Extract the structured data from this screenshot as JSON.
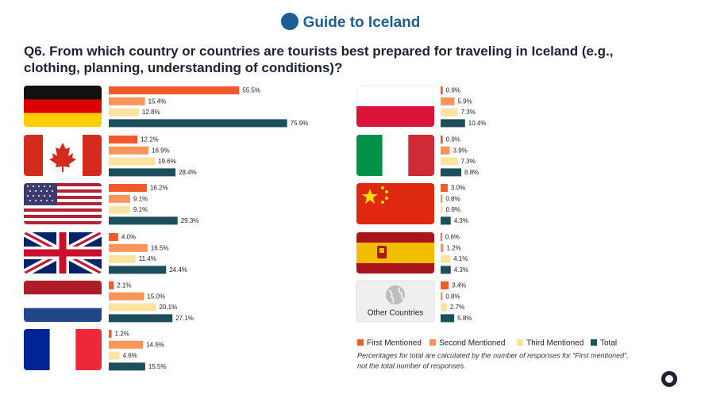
{
  "chart_data": {
    "type": "bar",
    "orientation": "horizontal",
    "brand": "Guide to Iceland",
    "title": "Q6. From which country or countries are tourists best prepared for traveling in Iceland (e.g., clothing, planning, understanding of conditions)?",
    "categories": [
      null,
      null,
      null,
      null,
      null,
      null,
      null,
      null,
      null,
      null,
      "Other Countries"
    ],
    "series": [
      {
        "name": "First Mentioned",
        "color": "#f15a2b",
        "values": [
          55.5,
          12.2,
          16.2,
          4.0,
          2.1,
          1.2,
          0.9,
          0.9,
          3.0,
          0.6,
          3.4
        ],
        "value_labels": [
          "55.5%",
          "12.2%",
          "16.2%",
          "4.0%",
          "2.1%",
          "1.2%",
          "0.9%",
          "0.9%",
          "3.0%",
          "0.6%",
          "3.4%"
        ]
      },
      {
        "name": "Second Mentioned",
        "color": "#f7955a",
        "values": [
          15.4,
          16.9,
          9.1,
          16.5,
          15.0,
          14.6,
          5.9,
          3.9,
          0.8,
          1.2,
          0.8
        ],
        "value_labels": [
          "15.4%",
          "16.9%",
          "9.1%",
          "16.5%",
          "15.0%",
          "14.6%",
          "5.9%",
          "3.9%",
          "0.8%",
          "1.2%",
          "0.8%"
        ]
      },
      {
        "name": "Third Mentioned",
        "color": "#fde3a1",
        "values": [
          12.8,
          19.6,
          9.1,
          11.4,
          20.1,
          4.6,
          7.3,
          7.3,
          0.9,
          4.1,
          2.7
        ],
        "value_labels": [
          "12.8%",
          "19.6%",
          "9.1%",
          "11.4%",
          "20.1%",
          "4.6%",
          "7.3%",
          "7.3%",
          "0.9%",
          "4.1%",
          "2.7%"
        ]
      },
      {
        "name": "Total",
        "color": "#1d4e5b",
        "values": [
          75.9,
          28.4,
          29.3,
          24.4,
          27.1,
          15.5,
          10.4,
          8.8,
          4.3,
          4.3,
          5.8
        ],
        "value_labels": [
          "75.9%",
          "28.4%",
          "29.3%",
          "24.4%",
          "27.1%",
          "15.5%",
          "10.4%",
          "8.8%",
          "4.3%",
          "4.3%",
          "5.8%"
        ]
      }
    ],
    "footnote": [
      "Percentages for total are calculated by the number of responses for “First mentioned”,",
      "not the total number of responses."
    ]
  }
}
